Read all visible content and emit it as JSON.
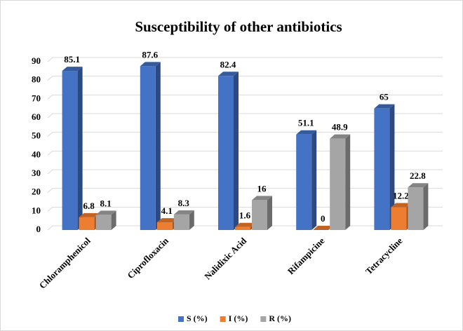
{
  "chart_data": {
    "type": "bar3d",
    "title": "Susceptibility of other antibiotics",
    "categories": [
      "Chloramphenicol",
      "Ciprofloxacin",
      "Nalidixic Acid",
      "Rifampicine",
      "Tetracycline"
    ],
    "series": [
      {
        "name": "S (%)",
        "color": "#4472c4",
        "values": [
          85.1,
          87.6,
          82.4,
          51.1,
          65
        ]
      },
      {
        "name": "I (%)",
        "color": "#ed7d31",
        "values": [
          6.8,
          4.1,
          1.6,
          0,
          12.2
        ]
      },
      {
        "name": "R (%)",
        "color": "#a5a5a5",
        "values": [
          8.1,
          8.3,
          16,
          48.9,
          22.8
        ]
      }
    ],
    "ylim": [
      0,
      90
    ],
    "yticks": [
      0,
      10,
      20,
      30,
      40,
      50,
      60,
      70,
      80,
      90
    ],
    "grid": true,
    "legend": "bottom"
  }
}
